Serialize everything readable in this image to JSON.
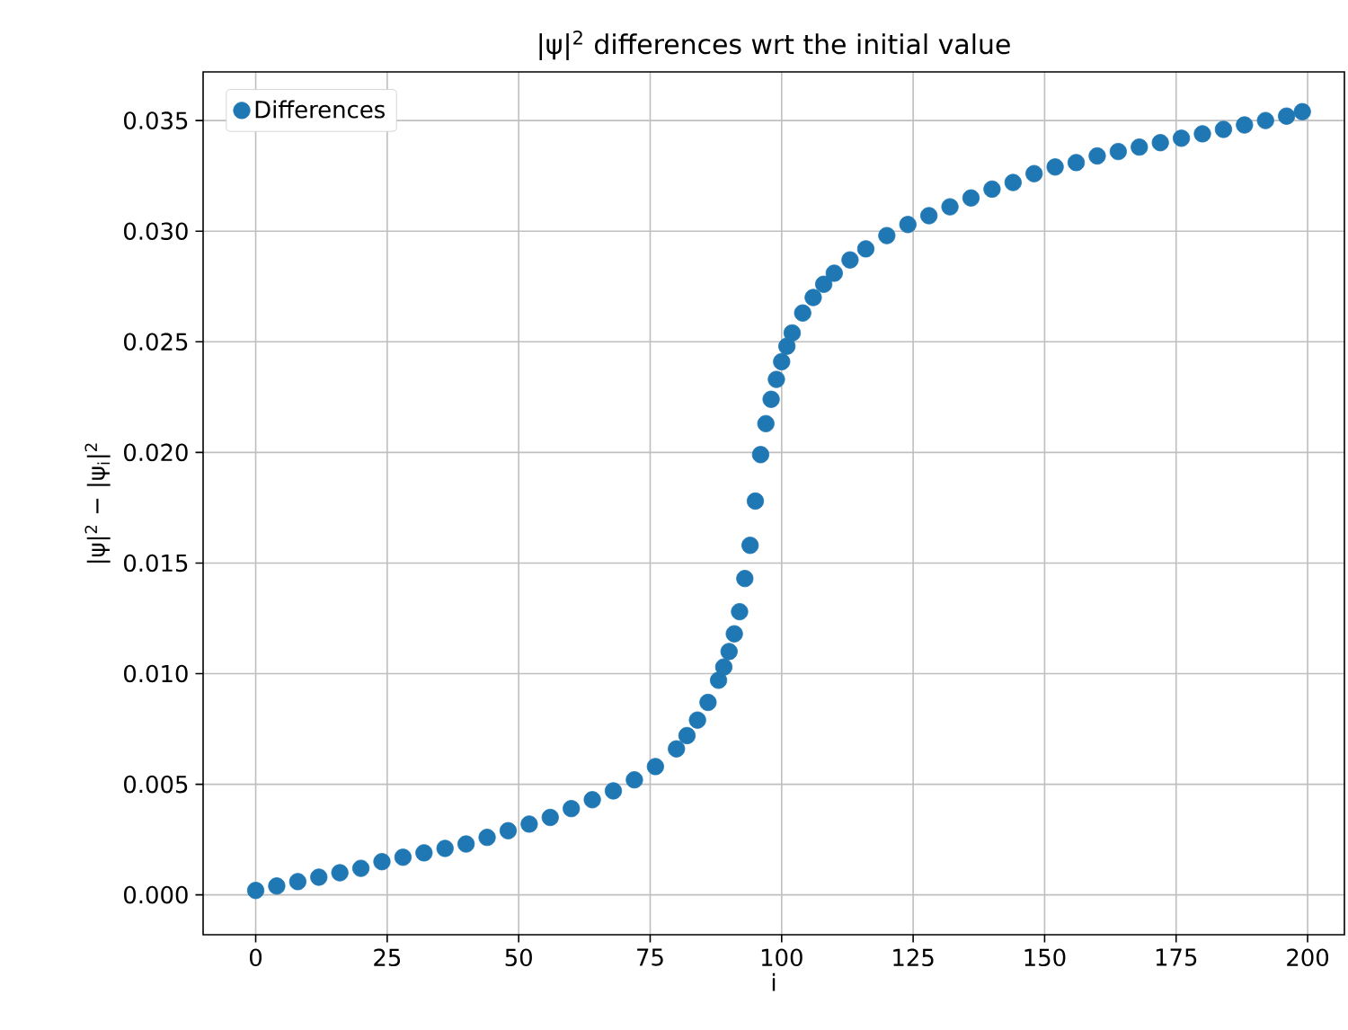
{
  "chart_data": {
    "type": "scatter",
    "title": "|ψ|$^{2}$ differences wrt the initial value",
    "xlabel": "i",
    "ylabel": "|ψ|$^{2}$ − |ψ$_{i}$|$^{2}$",
    "xlim": [
      -10,
      207
    ],
    "ylim": [
      -0.0018,
      0.0372
    ],
    "xticks": [
      0,
      25,
      50,
      75,
      100,
      125,
      150,
      175,
      200
    ],
    "yticks": [
      {
        "value": 0,
        "label": "0.000"
      },
      {
        "value": 0.005,
        "label": "0.005"
      },
      {
        "value": 0.01,
        "label": "0.010"
      },
      {
        "value": 0.015,
        "label": "0.015"
      },
      {
        "value": 0.02,
        "label": "0.020"
      },
      {
        "value": 0.025,
        "label": "0.025"
      },
      {
        "value": 0.03,
        "label": "0.030"
      },
      {
        "value": 0.035,
        "label": "0.035"
      }
    ],
    "grid": true,
    "legend": "top left",
    "marker": "circle",
    "series": [
      {
        "name": "Differences",
        "color": "#1f77b4",
        "x": [
          0,
          4,
          8,
          12,
          16,
          20,
          24,
          28,
          32,
          36,
          40,
          44,
          48,
          52,
          56,
          60,
          64,
          68,
          72,
          76,
          80,
          82,
          84,
          86,
          88,
          89,
          90,
          91,
          92,
          93,
          94,
          95,
          96,
          97,
          98,
          99,
          100,
          101,
          102,
          104,
          106,
          108,
          110,
          113,
          116,
          120,
          124,
          128,
          132,
          136,
          140,
          144,
          148,
          152,
          156,
          160,
          164,
          168,
          172,
          176,
          180,
          184,
          188,
          192,
          196,
          199
        ],
        "values": [
          0.0002,
          0.0004,
          0.0006,
          0.0008,
          0.001,
          0.0012,
          0.0015,
          0.0017,
          0.0019,
          0.0021,
          0.0023,
          0.0026,
          0.0029,
          0.0032,
          0.0035,
          0.0039,
          0.0043,
          0.0047,
          0.0052,
          0.0058,
          0.0066,
          0.0072,
          0.0079,
          0.0087,
          0.0097,
          0.0103,
          0.011,
          0.0118,
          0.0128,
          0.0143,
          0.0158,
          0.0178,
          0.0199,
          0.0213,
          0.0224,
          0.0233,
          0.0241,
          0.0248,
          0.0254,
          0.0263,
          0.027,
          0.0276,
          0.0281,
          0.0287,
          0.0292,
          0.0298,
          0.0303,
          0.0307,
          0.0311,
          0.0315,
          0.0319,
          0.0322,
          0.0326,
          0.0329,
          0.0331,
          0.0334,
          0.0336,
          0.0338,
          0.034,
          0.0342,
          0.0344,
          0.0346,
          0.0348,
          0.035,
          0.0352,
          0.0354
        ]
      }
    ]
  }
}
